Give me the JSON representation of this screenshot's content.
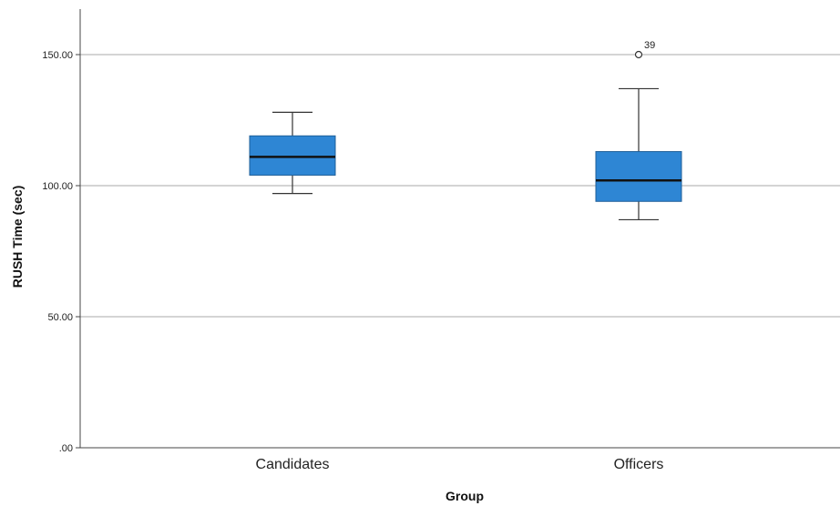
{
  "chart_data": {
    "type": "boxplot",
    "xlabel": "Group",
    "ylabel": "RUSH Time (sec)",
    "ylim": [
      0,
      165
    ],
    "yticks": [
      0,
      50,
      100,
      150
    ],
    "ytick_labels": [
      ".00",
      "50.00",
      "100.00",
      "150.00"
    ],
    "grid": "horizontal",
    "categories": [
      "Candidates",
      "Officers"
    ],
    "boxes": [
      {
        "category": "Candidates",
        "whisker_low": 97,
        "q1": 104,
        "median": 111,
        "q3": 119,
        "whisker_high": 128,
        "outliers": []
      },
      {
        "category": "Officers",
        "whisker_low": 87,
        "q1": 94,
        "median": 102,
        "q3": 113,
        "whisker_high": 137,
        "outliers": [
          {
            "value": 150,
            "label": "39"
          }
        ]
      }
    ],
    "colors": {
      "box_fill": "#2e86d4",
      "box_stroke": "#1f5f99",
      "median": "#111111",
      "gridline": "#d4d4d4",
      "axis": "#444444"
    }
  }
}
